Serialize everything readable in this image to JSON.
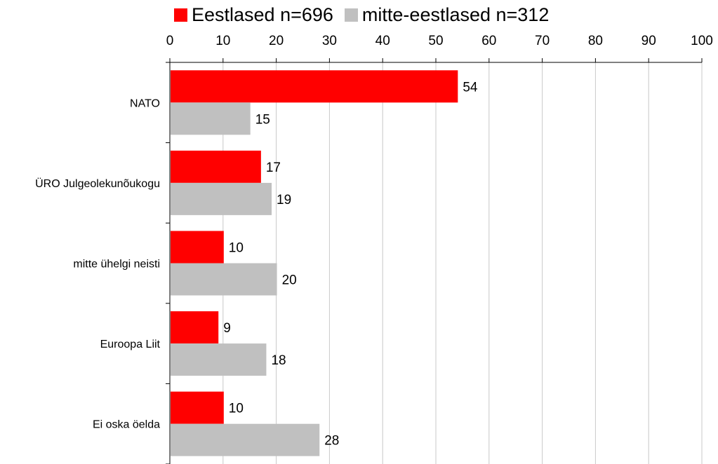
{
  "chart_data": {
    "type": "bar",
    "orientation": "horizontal",
    "categories": [
      "NATO",
      "ÜRO Julgeolekunõukogu",
      "mitte ühelgi neisti",
      "Euroopa Liit",
      "Ei oska öelda"
    ],
    "series": [
      {
        "name": "Eestlased n=696",
        "color": "#ff0000",
        "values": [
          54,
          17,
          10,
          9,
          10
        ]
      },
      {
        "name": "mitte-eestlased n=312",
        "color": "#c0c0c0",
        "values": [
          15,
          19,
          20,
          18,
          28
        ]
      }
    ],
    "xlim": [
      0,
      100
    ],
    "xticks": [
      "0",
      "10",
      "20",
      "30",
      "40",
      "50",
      "60",
      "70",
      "80",
      "90",
      "100"
    ],
    "x_axis_position": "top",
    "grid": true,
    "legend_position": "top",
    "data_labels": true,
    "title": "",
    "xlabel": "",
    "ylabel": ""
  }
}
